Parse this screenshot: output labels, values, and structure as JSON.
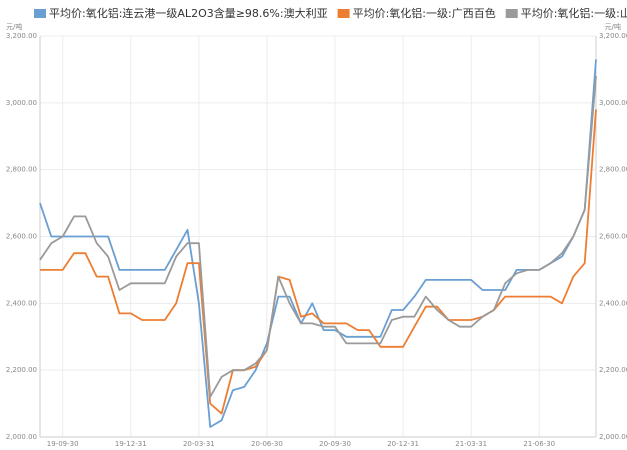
{
  "chart_data": {
    "type": "line",
    "y_unit": "元/吨",
    "y2_unit": "元/吨",
    "categories": [
      null,
      null,
      "19-09-30",
      null,
      null,
      null,
      null,
      null,
      "19-12-31",
      null,
      null,
      null,
      null,
      null,
      "20-03-31",
      null,
      null,
      null,
      null,
      null,
      "20-06-30",
      null,
      null,
      null,
      null,
      null,
      "20-09-30",
      null,
      null,
      null,
      null,
      null,
      "20-12-31",
      null,
      null,
      null,
      null,
      null,
      "21-03-31",
      null,
      null,
      null,
      null,
      null,
      "21-06-30",
      null,
      null,
      null,
      null,
      null
    ],
    "series": [
      {
        "name": "平均价:氧化铝:连云港一级AL2O3含量≥98.6%:澳大利亚",
        "color": "#6a9fd4",
        "values": [
          2700,
          2600,
          2600,
          2600,
          2600,
          2600,
          2600,
          2500,
          2500,
          2500,
          2500,
          2500,
          2560,
          2620,
          2400,
          2030,
          2050,
          2140,
          2150,
          2200,
          2280,
          2420,
          2420,
          2340,
          2400,
          2320,
          2320,
          2300,
          2300,
          2300,
          2300,
          2380,
          2380,
          2420,
          2470,
          2470,
          2470,
          2470,
          2470,
          2440,
          2440,
          2440,
          2500,
          2500,
          2500,
          2520,
          2540,
          2600,
          2680,
          3130
        ]
      },
      {
        "name": "平均价:氧化铝:一级:广西百色",
        "color": "#ed7d31",
        "values": [
          2500,
          2500,
          2500,
          2550,
          2550,
          2480,
          2480,
          2370,
          2370,
          2350,
          2350,
          2350,
          2400,
          2520,
          2520,
          2100,
          2070,
          2200,
          2200,
          2210,
          2260,
          2480,
          2470,
          2360,
          2370,
          2340,
          2340,
          2340,
          2320,
          2320,
          2270,
          2270,
          2270,
          2330,
          2390,
          2390,
          2350,
          2350,
          2350,
          2360,
          2380,
          2420,
          2420,
          2420,
          2420,
          2420,
          2400,
          2480,
          2520,
          2980
        ]
      },
      {
        "name": "平均价:氧化铝:一级:山东",
        "color": "#9a9a9a",
        "values": [
          2530,
          2580,
          2600,
          2660,
          2660,
          2580,
          2540,
          2440,
          2460,
          2460,
          2460,
          2460,
          2540,
          2580,
          2580,
          2120,
          2180,
          2200,
          2200,
          2220,
          2260,
          2480,
          2400,
          2340,
          2340,
          2330,
          2330,
          2280,
          2280,
          2280,
          2280,
          2350,
          2360,
          2360,
          2420,
          2380,
          2350,
          2330,
          2330,
          2360,
          2380,
          2460,
          2490,
          2500,
          2500,
          2520,
          2550,
          2600,
          2680,
          3080
        ]
      }
    ],
    "ylim": [
      2000,
      3200
    ],
    "yticks": [
      {
        "value": 2000,
        "label": "2,000.00"
      },
      {
        "value": 2200,
        "label": "2,200.00"
      },
      {
        "value": 2400,
        "label": "2,400.00"
      },
      {
        "value": 2600,
        "label": "2,600.00"
      },
      {
        "value": 2800,
        "label": "2,800.00"
      },
      {
        "value": 3000,
        "label": "3,000.00"
      },
      {
        "value": 3200,
        "label": "3,200.00"
      }
    ],
    "y2lim": [
      2000,
      3200
    ],
    "y2ticks": [
      {
        "value": 2000,
        "label": "2,000.00"
      },
      {
        "value": 2200,
        "label": "2,200.00"
      },
      {
        "value": 2400,
        "label": "2,400.00"
      },
      {
        "value": 2600,
        "label": "2,600.00"
      },
      {
        "value": 2800,
        "label": "2,800.00"
      },
      {
        "value": 3000,
        "label": "3,000.00"
      },
      {
        "value": 3200,
        "label": "3,200.00"
      }
    ],
    "grid": true,
    "legend": "top"
  }
}
